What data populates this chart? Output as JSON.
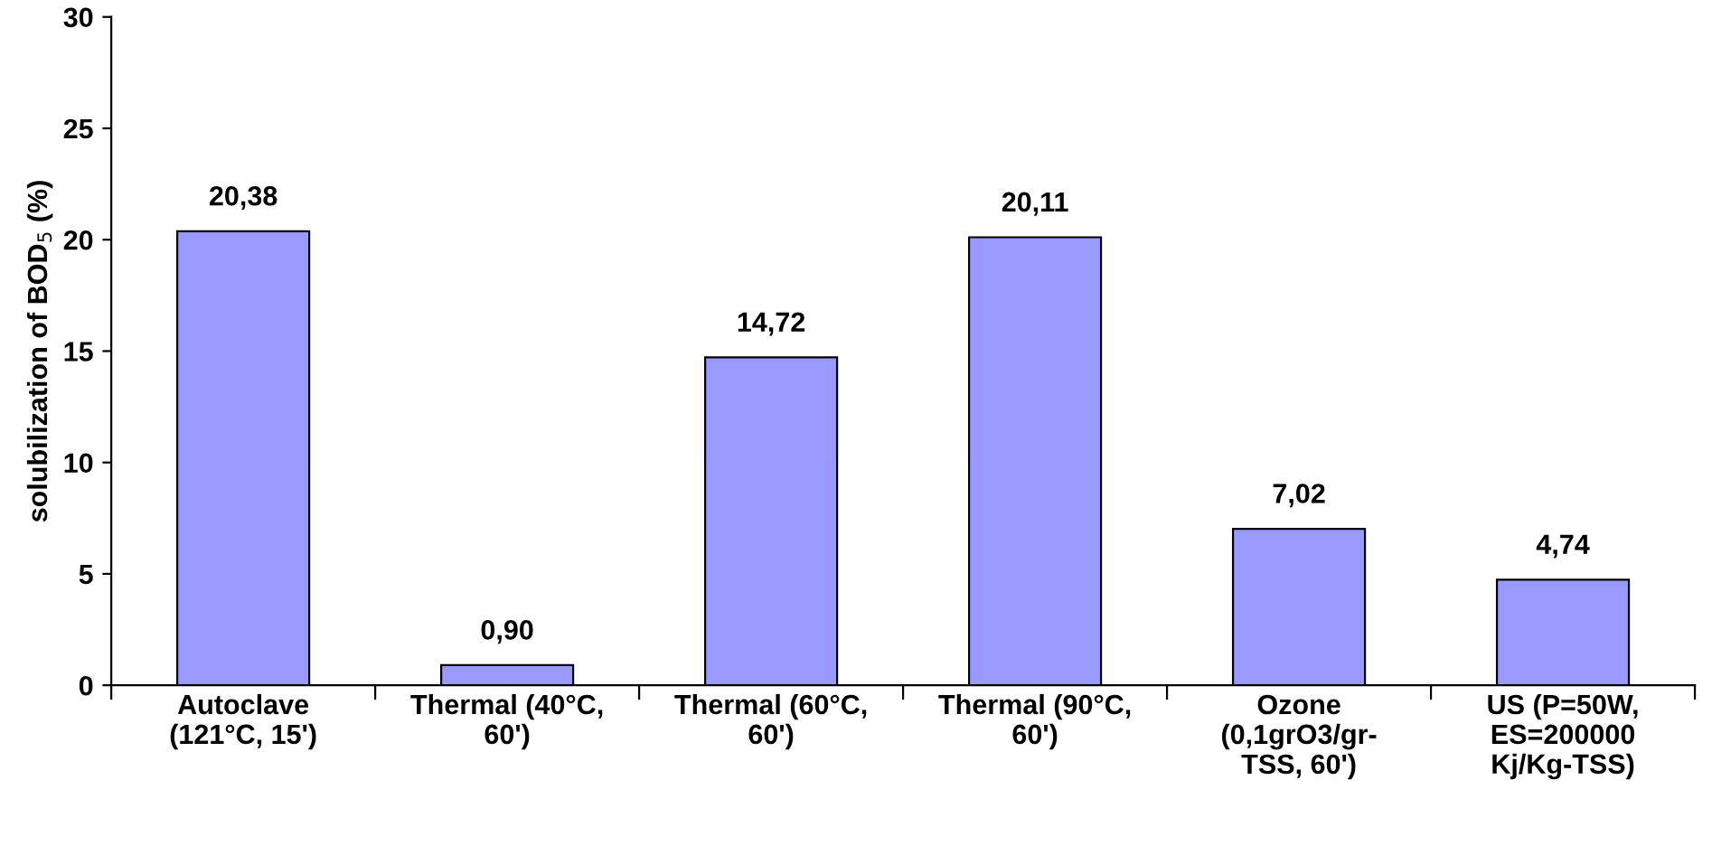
{
  "chart_data": {
    "type": "bar",
    "ylabel": "solubilization of BOD$_{5}$ (%)",
    "categories": [
      "Autoclave\n(121°C, 15')",
      "Thermal (40°C,\n60')",
      "Thermal (60°C,\n60')",
      "Thermal (90°C,\n60')",
      "Ozone\n(0,1grO3/gr-\nTSS, 60')",
      "US (P=50W,\nES=200000\nKj/Kg-TSS)"
    ],
    "values": [
      20.38,
      0.9,
      14.72,
      20.11,
      7.02,
      4.74
    ],
    "value_labels": [
      "20,38",
      "0,90",
      "14,72",
      "20,11",
      "7,02",
      "4,74"
    ],
    "color": "#9999ff",
    "ylim": [
      0,
      30
    ],
    "yticks": [
      0,
      5,
      10,
      15,
      20,
      25,
      30
    ],
    "grid": false,
    "legend": false
  }
}
